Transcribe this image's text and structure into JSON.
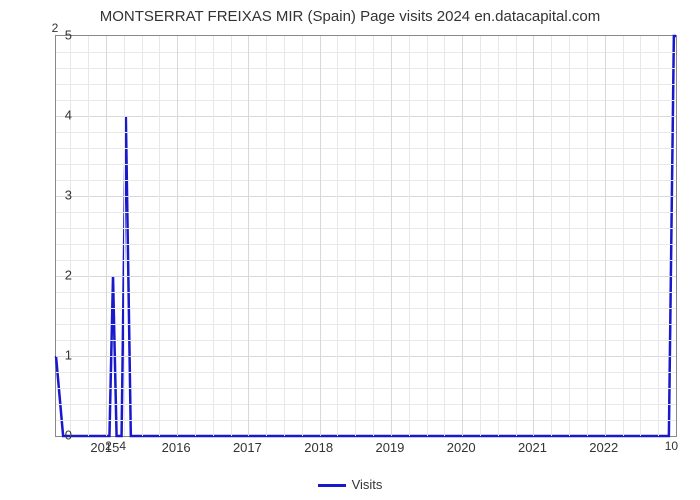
{
  "chart": {
    "type": "line",
    "title": "MONTSERRAT FREIXAS MIR (Spain) Page visits 2024 en.datacapital.com",
    "title_fontsize": 15,
    "background_color": "#ffffff",
    "grid_major_color": "#d8d8d8",
    "grid_minor_color": "#e8e8e8",
    "axis_color": "#888888",
    "line_color": "#1818cc",
    "line_width": 2.5,
    "label_color": "#333333",
    "tick_fontsize": 13,
    "ylim": [
      0,
      5
    ],
    "ytick_step": 1,
    "x_range_years": [
      2014.3,
      2023.0
    ],
    "x_major_ticks": [
      2015,
      2016,
      2017,
      2018,
      2019,
      2020,
      2021,
      2022
    ],
    "x_minor_per_major": 4,
    "series": {
      "name": "Visits",
      "points": [
        {
          "x": 2014.3,
          "y_from": 1,
          "y_to": 1,
          "label": ""
        },
        {
          "x": 2014.4,
          "y_from": 1,
          "y_to": 0,
          "label": ""
        },
        {
          "x": 2015.05,
          "y_from": 0,
          "y_to": 0,
          "label": "2"
        },
        {
          "x": 2015.1,
          "y_from": 0,
          "y_to": 2,
          "label": ""
        },
        {
          "x": 2015.15,
          "y_from": 2,
          "y_to": 0,
          "label": ""
        },
        {
          "x": 2015.25,
          "y_from": 0,
          "y_to": 4,
          "label": "4"
        },
        {
          "x": 2015.35,
          "y_from": 4,
          "y_to": 0,
          "label": ""
        },
        {
          "x": 2022.9,
          "y_from": 0,
          "y_to": 0,
          "label": ""
        },
        {
          "x": 2022.95,
          "y_from": 0,
          "y_to": 5,
          "label": "10"
        },
        {
          "x": 2023.0,
          "y_from": 5,
          "y_to": 5,
          "label": ""
        }
      ],
      "first_point_label": "2"
    },
    "legend": {
      "label": "Visits"
    }
  }
}
